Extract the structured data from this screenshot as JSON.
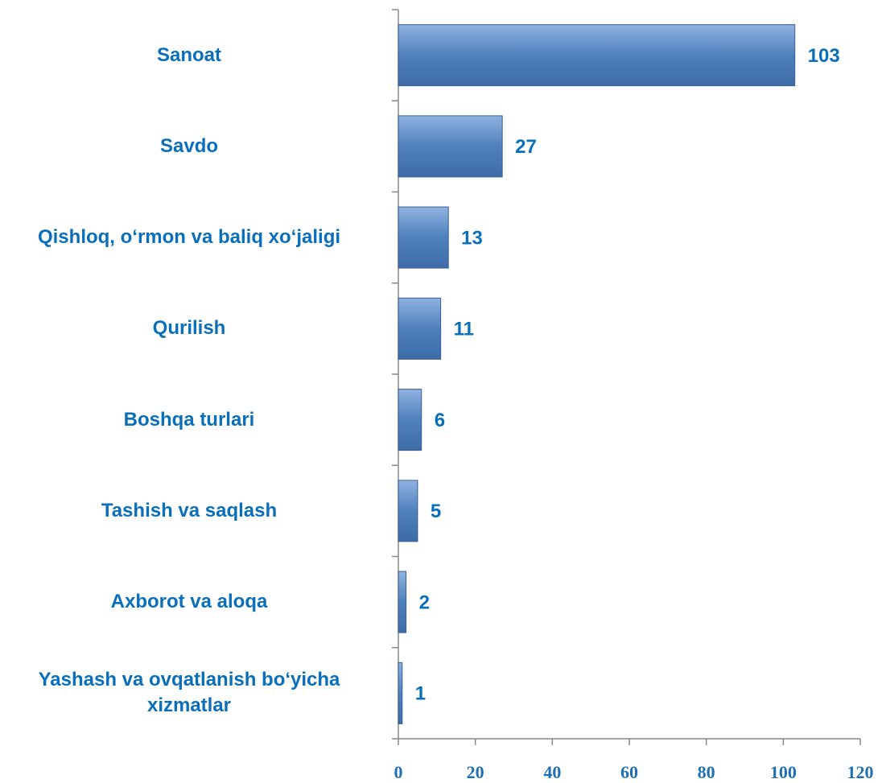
{
  "chart_data": {
    "type": "bar",
    "orientation": "horizontal",
    "categories": [
      "Sanoat",
      "Savdo",
      "Qishloq, o‘rmon va baliq xo‘jaligi",
      "Qurilish",
      "Boshqa turlari",
      "Tashish va saqlash",
      "Axborot va aloqa",
      "Yashash va ovqatlanish bo‘yicha xizmatlar"
    ],
    "values": [
      103,
      27,
      13,
      11,
      6,
      5,
      2,
      1
    ],
    "color": "#4f81bd",
    "xlim": [
      0,
      120
    ],
    "xticks": [
      0,
      20,
      40,
      60,
      80,
      100,
      120
    ],
    "grid": false
  }
}
